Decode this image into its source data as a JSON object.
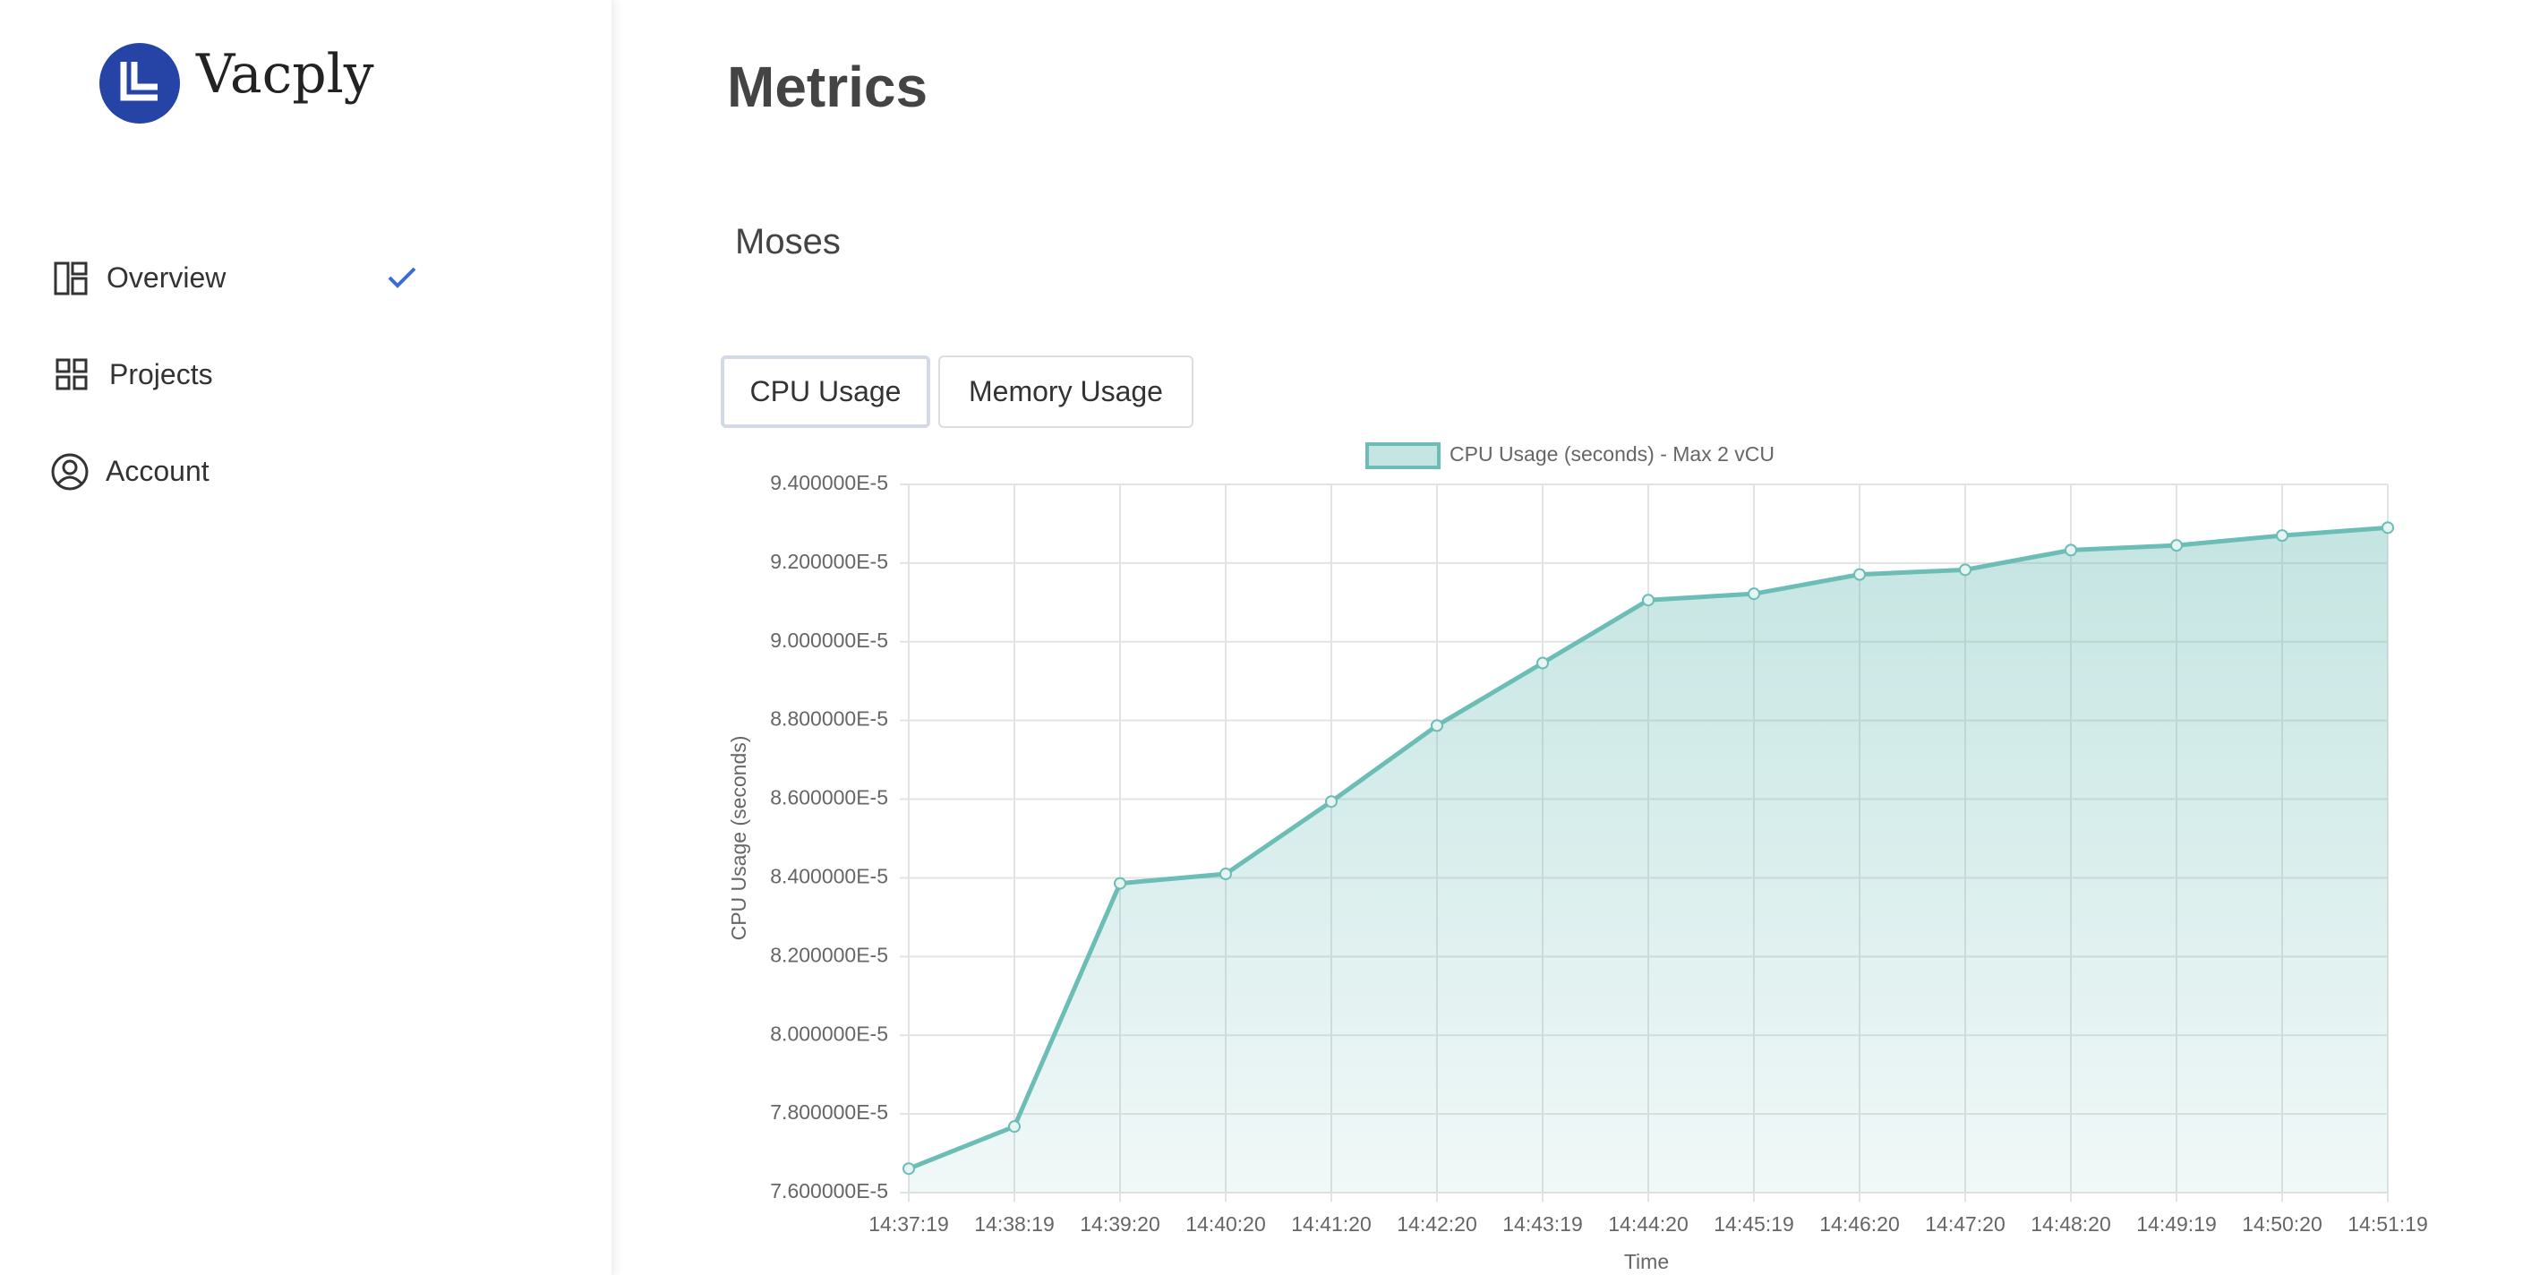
{
  "sidebar": {
    "brand": "Vacply",
    "nav": [
      "Overview",
      "Projects",
      "Account"
    ]
  },
  "header": {
    "title": "Metrics",
    "subtitle": "Moses"
  },
  "tabs": [
    "CPU Usage",
    "Memory Usage"
  ],
  "chart_data": {
    "type": "line",
    "x_label": "Time",
    "y_label": "CPU Usage (seconds)",
    "categories": [
      "14:37:19",
      "14:38:19",
      "14:39:20",
      "14:40:20",
      "14:41:20",
      "14:42:20",
      "14:43:19",
      "14:44:20",
      "14:45:19",
      "14:46:20",
      "14:47:20",
      "14:48:20",
      "14:49:19",
      "14:50:20",
      "14:51:19"
    ],
    "series": [
      {
        "name": "CPU Usage (seconds) - Max 2 vCU",
        "color": "#6cbdb6",
        "values": [
          7.661e-05,
          7.768e-05,
          8.386e-05,
          8.41e-05,
          8.594e-05,
          8.787e-05,
          8.946e-05,
          9.106e-05,
          9.122e-05,
          9.171e-05,
          9.183e-05,
          9.233e-05,
          9.245e-05,
          9.27e-05,
          9.29e-05
        ]
      }
    ],
    "ylim": [
      7.6e-05,
      9.4e-05
    ],
    "yticks": [
      {
        "value": 7.6e-05,
        "label": "7.600000E-5"
      },
      {
        "value": 7.8e-05,
        "label": "7.800000E-5"
      },
      {
        "value": 8e-05,
        "label": "8.000000E-5"
      },
      {
        "value": 8.2e-05,
        "label": "8.200000E-5"
      },
      {
        "value": 8.4e-05,
        "label": "8.400000E-5"
      },
      {
        "value": 8.6e-05,
        "label": "8.600000E-5"
      },
      {
        "value": 8.8e-05,
        "label": "8.800000E-5"
      },
      {
        "value": 9e-05,
        "label": "9.000000E-5"
      },
      {
        "value": 9.2e-05,
        "label": "9.200000E-5"
      },
      {
        "value": 9.4e-05,
        "label": "9.400000E-5"
      }
    ],
    "grid": true,
    "fill": true
  }
}
